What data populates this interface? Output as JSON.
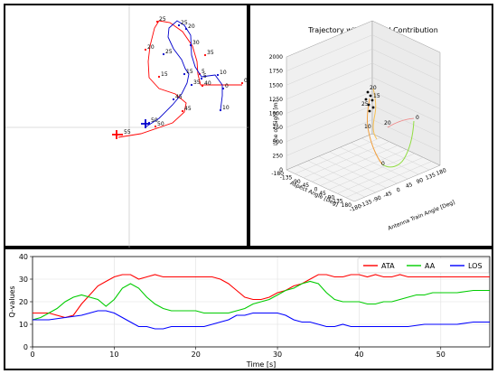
{
  "chart_data": [
    {
      "type": "line",
      "panel": "top-left trajectory (2D projection)",
      "title": "",
      "series": [
        {
          "color": "#ff0000",
          "points": [
            [
              125,
              146
            ],
            [
              150,
              142
            ],
            [
              185,
              130
            ],
            [
              198,
              118
            ],
            [
              200,
              108
            ],
            [
              188,
              98
            ],
            [
              170,
              92
            ],
            [
              159,
              80
            ],
            [
              158,
              62
            ],
            [
              160,
              45
            ],
            [
              165,
              25
            ],
            [
              170,
              17
            ],
            [
              182,
              19
            ],
            [
              196,
              29
            ],
            [
              207,
              45
            ],
            [
              212,
              62
            ],
            [
              213,
              76
            ],
            [
              216,
              88
            ],
            [
              240,
              88
            ],
            [
              262,
              88
            ]
          ],
          "labels": [
            [
              129,
              143,
              "55"
            ],
            [
              166,
              134,
              "50"
            ],
            [
              196,
              117,
              "45"
            ],
            [
              170,
              79,
              "15"
            ],
            [
              155,
              49,
              "20"
            ],
            [
              168,
              18,
              "25"
            ],
            [
              221,
              55,
              "35"
            ],
            [
              218,
              89,
              "40"
            ],
            [
              215,
              76,
              "5"
            ],
            [
              262,
              86,
              "0"
            ]
          ]
        },
        {
          "color": "#0000cc",
          "points": [
            [
              156,
              134
            ],
            [
              170,
              125
            ],
            [
              185,
              110
            ],
            [
              195,
              98
            ],
            [
              201,
              86
            ],
            [
              203,
              76
            ],
            [
              199,
              70
            ],
            [
              195,
              60
            ],
            [
              186,
              48
            ],
            [
              180,
              35
            ],
            [
              181,
              25
            ],
            [
              190,
              17
            ],
            [
              198,
              22
            ],
            [
              205,
              33
            ],
            [
              206,
              55
            ],
            [
              210,
              68
            ],
            [
              217,
              79
            ],
            [
              232,
              77
            ],
            [
              240,
              88
            ],
            [
              240,
              100
            ],
            [
              238,
              116
            ]
          ],
          "labels": [
            [
              159,
              130,
              "50"
            ],
            [
              186,
              104,
              "45"
            ],
            [
              198,
              76,
              "15"
            ],
            [
              175,
              54,
              "25"
            ],
            [
              192,
              22,
              "25"
            ],
            [
              200,
              26,
              "20"
            ],
            [
              205,
              44,
              "30"
            ],
            [
              206,
              88,
              "35"
            ],
            [
              217,
              81,
              "5"
            ],
            [
              235,
              77,
              "10"
            ],
            [
              241,
              92,
              "0"
            ],
            [
              238,
              116,
              "10"
            ]
          ]
        }
      ]
    },
    {
      "type": "line",
      "panel": "top-right 3D",
      "title": "Trajectory with Reward Contribution",
      "xlabel": "Antenna Train Angle [Deg]",
      "ylabel": "Aspect Angle [Deg]",
      "zlabel": "Line of Sight [m]",
      "z_ticks": [
        "0",
        "250",
        "500",
        "750",
        "1000",
        "1250",
        "1500",
        "1750",
        "2000"
      ],
      "x_ticks": [
        "-180",
        "-135",
        "-90",
        "-45",
        "0",
        "45",
        "90",
        "135",
        "180"
      ],
      "y_ticks": [
        "-180",
        "-135",
        "-90",
        "-45",
        "0",
        "45",
        "90",
        "135",
        "180"
      ],
      "point_labels": [
        "20",
        "15",
        "25",
        "10",
        "20",
        "0",
        "0"
      ]
    },
    {
      "type": "line",
      "title": "",
      "xlabel": "Time [s]",
      "ylabel": "Q-values",
      "xlim": [
        0,
        56
      ],
      "ylim": [
        0,
        40
      ],
      "x_ticks": [
        0,
        10,
        20,
        30,
        40,
        50
      ],
      "y_ticks": [
        0,
        10,
        20,
        30,
        40
      ],
      "grid": true,
      "legend": "top-right",
      "series": [
        {
          "name": "ATA",
          "color": "#ff0000",
          "x": [
            0,
            2,
            4,
            5,
            6,
            7,
            8,
            9,
            10,
            11,
            12,
            13,
            14,
            15,
            16,
            17,
            18,
            19,
            20,
            21,
            22,
            23,
            24,
            25,
            26,
            27,
            28,
            29,
            30,
            31,
            32,
            33,
            34,
            35,
            36,
            37,
            38,
            39,
            40,
            41,
            42,
            43,
            44,
            45,
            46,
            47,
            48,
            49,
            50,
            52,
            54,
            56
          ],
          "values": [
            15,
            15,
            13,
            14,
            19,
            23,
            27,
            29,
            31,
            32,
            32,
            30,
            31,
            32,
            31,
            31,
            31,
            31,
            31,
            31,
            31,
            30,
            28,
            25,
            22,
            21,
            21,
            22,
            24,
            25,
            27,
            28,
            30,
            32,
            32,
            31,
            31,
            32,
            32,
            31,
            32,
            31,
            31,
            32,
            31,
            31,
            31,
            31,
            31,
            31,
            31,
            31
          ]
        },
        {
          "name": "AA",
          "color": "#00cc00",
          "x": [
            0,
            1,
            2,
            3,
            4,
            5,
            6,
            7,
            8,
            9,
            10,
            11,
            12,
            13,
            14,
            15,
            16,
            17,
            18,
            19,
            20,
            21,
            22,
            23,
            24,
            25,
            26,
            27,
            28,
            29,
            30,
            31,
            32,
            33,
            34,
            35,
            36,
            37,
            38,
            39,
            40,
            41,
            42,
            43,
            44,
            45,
            46,
            47,
            48,
            49,
            50,
            52,
            54,
            56
          ],
          "values": [
            12,
            13,
            15,
            17,
            20,
            22,
            23,
            22,
            21,
            18,
            21,
            26,
            28,
            26,
            22,
            19,
            17,
            16,
            16,
            16,
            16,
            15,
            15,
            15,
            15,
            16,
            17,
            19,
            20,
            21,
            23,
            25,
            26,
            28,
            29,
            28,
            24,
            21,
            20,
            20,
            20,
            19,
            19,
            20,
            20,
            21,
            22,
            23,
            23,
            24,
            24,
            24,
            25,
            25
          ]
        },
        {
          "name": "LOS",
          "color": "#0000ff",
          "x": [
            0,
            2,
            4,
            6,
            7,
            8,
            9,
            10,
            11,
            12,
            13,
            14,
            15,
            16,
            17,
            18,
            19,
            20,
            21,
            22,
            23,
            24,
            25,
            26,
            27,
            28,
            29,
            30,
            31,
            32,
            33,
            34,
            35,
            36,
            37,
            38,
            39,
            40,
            42,
            44,
            46,
            48,
            50,
            52,
            54,
            56
          ],
          "values": [
            12,
            12,
            13,
            14,
            15,
            16,
            16,
            15,
            13,
            11,
            9,
            9,
            8,
            8,
            9,
            9,
            9,
            9,
            9,
            10,
            11,
            12,
            14,
            14,
            15,
            15,
            15,
            15,
            14,
            12,
            11,
            11,
            10,
            9,
            9,
            10,
            9,
            9,
            9,
            9,
            9,
            10,
            10,
            10,
            11,
            11
          ]
        }
      ]
    }
  ]
}
